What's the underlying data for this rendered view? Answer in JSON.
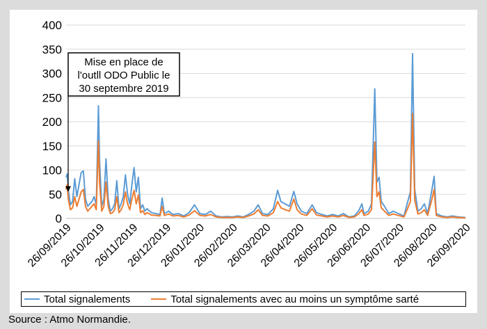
{
  "chart_data": {
    "type": "line",
    "ylim": [
      0,
      400
    ],
    "yticks": [
      0,
      50,
      100,
      150,
      200,
      250,
      300,
      350,
      400
    ],
    "x_tick_labels": [
      "26/09/2019",
      "26/10/2019",
      "26/11/2019",
      "26/12/2019",
      "26/01/2020",
      "26/02/2020",
      "26/03/2020",
      "26/04/2020",
      "26/05/2020",
      "26/06/2020",
      "26/07/2020",
      "26/08/2020",
      "26/09/2020"
    ],
    "x_start": "2019-09-26",
    "x_end": "2020-09-30",
    "grid": "horizontal",
    "legend_position": "bottom",
    "annotation": {
      "lines": [
        "Mise en place de",
        "l'outll ODO Public le",
        "30 septembre 2019"
      ],
      "arrow_target": {
        "x": "2019-09-30",
        "y": 55
      }
    },
    "series": [
      {
        "name": "Total signalements",
        "color": "#5b9bd5",
        "points": [
          [
            "2019-09-26",
            85
          ],
          [
            "2019-09-27",
            92
          ],
          [
            "2019-09-28",
            60
          ],
          [
            "2019-09-30",
            28
          ],
          [
            "2019-10-02",
            35
          ],
          [
            "2019-10-04",
            82
          ],
          [
            "2019-10-06",
            45
          ],
          [
            "2019-10-08",
            70
          ],
          [
            "2019-10-10",
            95
          ],
          [
            "2019-10-12",
            98
          ],
          [
            "2019-10-14",
            40
          ],
          [
            "2019-10-16",
            25
          ],
          [
            "2019-10-18",
            30
          ],
          [
            "2019-10-20",
            35
          ],
          [
            "2019-10-22",
            45
          ],
          [
            "2019-10-24",
            28
          ],
          [
            "2019-10-26",
            233
          ],
          [
            "2019-10-27",
            120
          ],
          [
            "2019-10-29",
            25
          ],
          [
            "2019-10-31",
            40
          ],
          [
            "2019-11-02",
            123
          ],
          [
            "2019-11-04",
            40
          ],
          [
            "2019-11-06",
            15
          ],
          [
            "2019-11-08",
            20
          ],
          [
            "2019-11-10",
            30
          ],
          [
            "2019-11-12",
            78
          ],
          [
            "2019-11-14",
            20
          ],
          [
            "2019-11-16",
            30
          ],
          [
            "2019-11-18",
            45
          ],
          [
            "2019-11-20",
            90
          ],
          [
            "2019-11-22",
            50
          ],
          [
            "2019-11-24",
            30
          ],
          [
            "2019-11-26",
            70
          ],
          [
            "2019-11-28",
            105
          ],
          [
            "2019-11-30",
            55
          ],
          [
            "2019-12-02",
            85
          ],
          [
            "2019-12-04",
            20
          ],
          [
            "2019-12-06",
            28
          ],
          [
            "2019-12-08",
            15
          ],
          [
            "2019-12-10",
            20
          ],
          [
            "2019-12-14",
            12
          ],
          [
            "2019-12-18",
            10
          ],
          [
            "2019-12-22",
            8
          ],
          [
            "2019-12-24",
            42
          ],
          [
            "2019-12-26",
            10
          ],
          [
            "2019-12-30",
            15
          ],
          [
            "2020-01-03",
            8
          ],
          [
            "2020-01-08",
            10
          ],
          [
            "2020-01-13",
            5
          ],
          [
            "2020-01-18",
            12
          ],
          [
            "2020-01-23",
            28
          ],
          [
            "2020-01-28",
            10
          ],
          [
            "2020-02-02",
            8
          ],
          [
            "2020-02-07",
            15
          ],
          [
            "2020-02-12",
            5
          ],
          [
            "2020-02-17",
            3
          ],
          [
            "2020-02-22",
            4
          ],
          [
            "2020-02-27",
            3
          ],
          [
            "2020-03-03",
            5
          ],
          [
            "2020-03-08",
            3
          ],
          [
            "2020-03-13",
            8
          ],
          [
            "2020-03-18",
            15
          ],
          [
            "2020-03-22",
            28
          ],
          [
            "2020-03-26",
            10
          ],
          [
            "2020-03-31",
            8
          ],
          [
            "2020-04-05",
            20
          ],
          [
            "2020-04-09",
            58
          ],
          [
            "2020-04-12",
            35
          ],
          [
            "2020-04-16",
            30
          ],
          [
            "2020-04-20",
            25
          ],
          [
            "2020-04-24",
            56
          ],
          [
            "2020-04-27",
            30
          ],
          [
            "2020-05-01",
            15
          ],
          [
            "2020-05-06",
            10
          ],
          [
            "2020-05-11",
            28
          ],
          [
            "2020-05-15",
            12
          ],
          [
            "2020-05-20",
            8
          ],
          [
            "2020-05-25",
            5
          ],
          [
            "2020-05-30",
            8
          ],
          [
            "2020-06-04",
            5
          ],
          [
            "2020-06-09",
            10
          ],
          [
            "2020-06-14",
            3
          ],
          [
            "2020-06-19",
            5
          ],
          [
            "2020-06-23",
            15
          ],
          [
            "2020-06-26",
            30
          ],
          [
            "2020-06-28",
            10
          ],
          [
            "2020-07-02",
            15
          ],
          [
            "2020-07-05",
            30
          ],
          [
            "2020-07-08",
            268
          ],
          [
            "2020-07-10",
            75
          ],
          [
            "2020-07-12",
            85
          ],
          [
            "2020-07-14",
            35
          ],
          [
            "2020-07-17",
            25
          ],
          [
            "2020-07-21",
            10
          ],
          [
            "2020-07-25",
            15
          ],
          [
            "2020-07-30",
            10
          ],
          [
            "2020-08-04",
            5
          ],
          [
            "2020-08-07",
            30
          ],
          [
            "2020-08-10",
            55
          ],
          [
            "2020-08-12",
            341
          ],
          [
            "2020-08-14",
            60
          ],
          [
            "2020-08-17",
            15
          ],
          [
            "2020-08-20",
            20
          ],
          [
            "2020-08-23",
            30
          ],
          [
            "2020-08-26",
            10
          ],
          [
            "2020-08-30",
            60
          ],
          [
            "2020-09-01",
            87
          ],
          [
            "2020-09-03",
            10
          ],
          [
            "2020-09-08",
            5
          ],
          [
            "2020-09-13",
            3
          ],
          [
            "2020-09-18",
            5
          ],
          [
            "2020-09-23",
            3
          ],
          [
            "2020-09-30",
            2
          ]
        ]
      },
      {
        "name": "Total signalements avec au moins un symptôme sarté",
        "color": "#ed7d31",
        "points": [
          [
            "2019-09-26",
            60
          ],
          [
            "2019-09-27",
            70
          ],
          [
            "2019-09-28",
            40
          ],
          [
            "2019-09-30",
            18
          ],
          [
            "2019-10-02",
            22
          ],
          [
            "2019-10-04",
            45
          ],
          [
            "2019-10-06",
            25
          ],
          [
            "2019-10-08",
            40
          ],
          [
            "2019-10-10",
            55
          ],
          [
            "2019-10-12",
            60
          ],
          [
            "2019-10-14",
            25
          ],
          [
            "2019-10-16",
            15
          ],
          [
            "2019-10-18",
            20
          ],
          [
            "2019-10-20",
            25
          ],
          [
            "2019-10-22",
            30
          ],
          [
            "2019-10-24",
            18
          ],
          [
            "2019-10-26",
            160
          ],
          [
            "2019-10-27",
            75
          ],
          [
            "2019-10-29",
            15
          ],
          [
            "2019-10-31",
            25
          ],
          [
            "2019-11-02",
            75
          ],
          [
            "2019-11-04",
            25
          ],
          [
            "2019-11-06",
            10
          ],
          [
            "2019-11-08",
            12
          ],
          [
            "2019-11-10",
            18
          ],
          [
            "2019-11-12",
            45
          ],
          [
            "2019-11-14",
            12
          ],
          [
            "2019-11-16",
            18
          ],
          [
            "2019-11-18",
            28
          ],
          [
            "2019-11-20",
            55
          ],
          [
            "2019-11-22",
            30
          ],
          [
            "2019-11-24",
            18
          ],
          [
            "2019-11-26",
            40
          ],
          [
            "2019-11-28",
            58
          ],
          [
            "2019-11-30",
            30
          ],
          [
            "2019-12-02",
            48
          ],
          [
            "2019-12-04",
            12
          ],
          [
            "2019-12-06",
            16
          ],
          [
            "2019-12-08",
            8
          ],
          [
            "2019-12-10",
            12
          ],
          [
            "2019-12-14",
            7
          ],
          [
            "2019-12-18",
            6
          ],
          [
            "2019-12-22",
            5
          ],
          [
            "2019-12-24",
            25
          ],
          [
            "2019-12-26",
            6
          ],
          [
            "2019-12-30",
            9
          ],
          [
            "2020-01-03",
            5
          ],
          [
            "2020-01-08",
            6
          ],
          [
            "2020-01-13",
            3
          ],
          [
            "2020-01-18",
            7
          ],
          [
            "2020-01-23",
            16
          ],
          [
            "2020-01-28",
            6
          ],
          [
            "2020-02-02",
            5
          ],
          [
            "2020-02-07",
            8
          ],
          [
            "2020-02-12",
            3
          ],
          [
            "2020-02-17",
            2
          ],
          [
            "2020-02-22",
            2
          ],
          [
            "2020-02-27",
            2
          ],
          [
            "2020-03-03",
            3
          ],
          [
            "2020-03-08",
            2
          ],
          [
            "2020-03-13",
            5
          ],
          [
            "2020-03-18",
            9
          ],
          [
            "2020-03-22",
            18
          ],
          [
            "2020-03-26",
            6
          ],
          [
            "2020-03-31",
            5
          ],
          [
            "2020-04-05",
            12
          ],
          [
            "2020-04-09",
            35
          ],
          [
            "2020-04-12",
            22
          ],
          [
            "2020-04-16",
            18
          ],
          [
            "2020-04-20",
            15
          ],
          [
            "2020-04-24",
            40
          ],
          [
            "2020-04-27",
            18
          ],
          [
            "2020-05-01",
            9
          ],
          [
            "2020-05-06",
            6
          ],
          [
            "2020-05-11",
            20
          ],
          [
            "2020-05-15",
            7
          ],
          [
            "2020-05-20",
            5
          ],
          [
            "2020-05-25",
            3
          ],
          [
            "2020-05-30",
            5
          ],
          [
            "2020-06-04",
            3
          ],
          [
            "2020-06-09",
            6
          ],
          [
            "2020-06-14",
            2
          ],
          [
            "2020-06-19",
            3
          ],
          [
            "2020-06-23",
            9
          ],
          [
            "2020-06-26",
            18
          ],
          [
            "2020-06-28",
            6
          ],
          [
            "2020-07-02",
            9
          ],
          [
            "2020-07-05",
            18
          ],
          [
            "2020-07-08",
            158
          ],
          [
            "2020-07-10",
            45
          ],
          [
            "2020-07-12",
            55
          ],
          [
            "2020-07-14",
            22
          ],
          [
            "2020-07-17",
            15
          ],
          [
            "2020-07-21",
            6
          ],
          [
            "2020-07-25",
            9
          ],
          [
            "2020-07-30",
            6
          ],
          [
            "2020-08-04",
            3
          ],
          [
            "2020-08-07",
            18
          ],
          [
            "2020-08-10",
            35
          ],
          [
            "2020-08-12",
            217
          ],
          [
            "2020-08-14",
            38
          ],
          [
            "2020-08-17",
            9
          ],
          [
            "2020-08-20",
            12
          ],
          [
            "2020-08-23",
            18
          ],
          [
            "2020-08-26",
            6
          ],
          [
            "2020-08-30",
            40
          ],
          [
            "2020-09-01",
            60
          ],
          [
            "2020-09-03",
            6
          ],
          [
            "2020-09-08",
            3
          ],
          [
            "2020-09-13",
            2
          ],
          [
            "2020-09-18",
            3
          ],
          [
            "2020-09-23",
            2
          ],
          [
            "2020-09-30",
            1
          ]
        ]
      }
    ]
  },
  "source_text": "Source : Atmo Normandie."
}
